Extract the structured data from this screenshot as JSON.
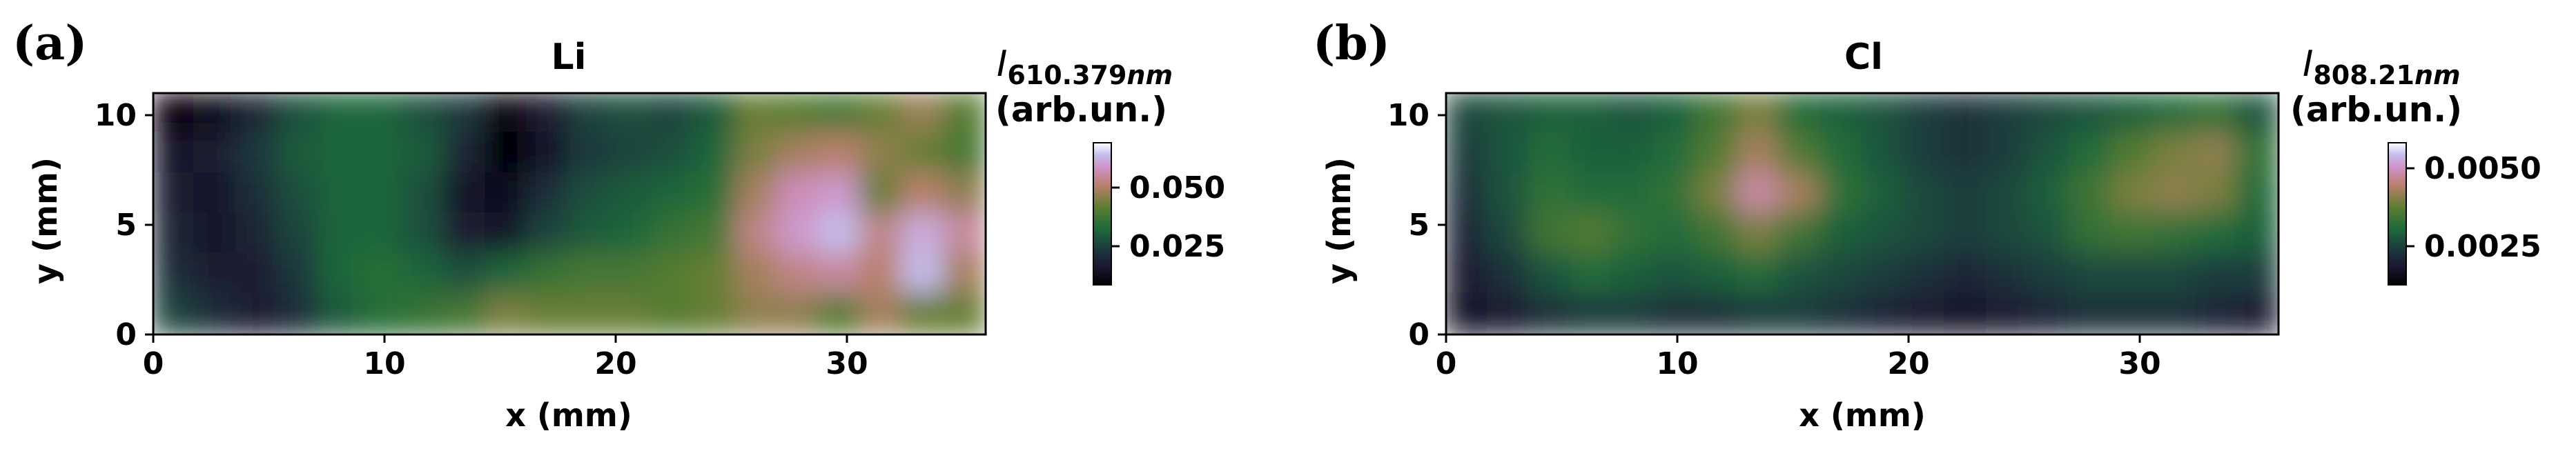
{
  "figure": {
    "panels": [
      {
        "letter": "(a)",
        "title": "Li",
        "xlabel": "x (mm)",
        "ylabel": "y (mm)",
        "xticks": [
          "0",
          "10",
          "20",
          "30"
        ],
        "yticks": [
          "0",
          "5",
          "10"
        ],
        "colorbar": {
          "symbol": "I",
          "subscript_bold": "610.379",
          "subscript_italic": "nm",
          "unit": "(arb.un.)",
          "ticks": [
            "0.025",
            "0.050"
          ]
        }
      },
      {
        "letter": "(b)",
        "title": "Cl",
        "xlabel": "x (mm)",
        "ylabel": "y (mm)",
        "xticks": [
          "0",
          "10",
          "20",
          "30"
        ],
        "yticks": [
          "0",
          "5",
          "10"
        ],
        "colorbar": {
          "symbol": "I",
          "subscript_bold": "808.21",
          "subscript_italic": "nm",
          "unit": "(arb.un.)",
          "ticks": [
            "0.0025",
            "0.0050"
          ]
        }
      }
    ]
  },
  "chart_data": [
    {
      "type": "heatmap",
      "title": "Li",
      "xlabel": "x (mm)",
      "ylabel": "y (mm)",
      "xlim": [
        0,
        36
      ],
      "ylim": [
        0,
        11
      ],
      "colormap": "cubehelix",
      "colorbar_ticks": [
        0.025,
        0.05
      ],
      "color_range": [
        0.008,
        0.065
      ],
      "values": [
        [
          0.01,
          0.012,
          0.018,
          0.026,
          0.03,
          0.03,
          0.026,
          0.022,
          0.01,
          0.016,
          0.024,
          0.026,
          0.024,
          0.028,
          0.04,
          0.038,
          0.036,
          0.04,
          0.045,
          0.038
        ],
        [
          0.014,
          0.016,
          0.022,
          0.028,
          0.03,
          0.03,
          0.028,
          0.018,
          0.008,
          0.014,
          0.022,
          0.024,
          0.026,
          0.03,
          0.042,
          0.046,
          0.048,
          0.044,
          0.04,
          0.036
        ],
        [
          0.016,
          0.014,
          0.02,
          0.026,
          0.03,
          0.03,
          0.026,
          0.014,
          0.012,
          0.02,
          0.026,
          0.028,
          0.03,
          0.032,
          0.046,
          0.054,
          0.056,
          0.04,
          0.048,
          0.044
        ],
        [
          0.018,
          0.014,
          0.018,
          0.024,
          0.03,
          0.03,
          0.026,
          0.016,
          0.014,
          0.024,
          0.028,
          0.03,
          0.034,
          0.036,
          0.05,
          0.056,
          0.06,
          0.05,
          0.058,
          0.052
        ],
        [
          0.02,
          0.016,
          0.016,
          0.022,
          0.03,
          0.032,
          0.03,
          0.026,
          0.03,
          0.034,
          0.036,
          0.036,
          0.038,
          0.04,
          0.046,
          0.05,
          0.052,
          0.048,
          0.06,
          0.046
        ],
        [
          0.024,
          0.02,
          0.016,
          0.02,
          0.028,
          0.032,
          0.034,
          0.036,
          0.042,
          0.04,
          0.04,
          0.04,
          0.038,
          0.04,
          0.044,
          0.044,
          0.038,
          0.046,
          0.04,
          0.04
        ]
      ]
    },
    {
      "type": "heatmap",
      "title": "Cl",
      "xlabel": "x (mm)",
      "ylabel": "y (mm)",
      "xlim": [
        0,
        36
      ],
      "ylim": [
        0,
        11
      ],
      "colormap": "cubehelix",
      "colorbar_ticks": [
        0.0025,
        0.005
      ],
      "color_range": [
        0.0008,
        0.0062
      ],
      "values": [
        [
          0.0024,
          0.0026,
          0.0028,
          0.0028,
          0.0026,
          0.0028,
          0.0034,
          0.004,
          0.003,
          0.0028,
          0.0026,
          0.0022,
          0.002,
          0.0022,
          0.0024,
          0.0026,
          0.0028,
          0.003,
          0.0032,
          0.0026
        ],
        [
          0.0022,
          0.0026,
          0.003,
          0.0028,
          0.0028,
          0.003,
          0.0036,
          0.0044,
          0.0036,
          0.003,
          0.0026,
          0.0022,
          0.002,
          0.0022,
          0.0026,
          0.003,
          0.0036,
          0.004,
          0.0042,
          0.0032
        ],
        [
          0.002,
          0.0026,
          0.0032,
          0.003,
          0.003,
          0.0032,
          0.004,
          0.005,
          0.0044,
          0.0032,
          0.0028,
          0.0024,
          0.0022,
          0.0024,
          0.0028,
          0.0034,
          0.004,
          0.0042,
          0.004,
          0.003
        ],
        [
          0.0018,
          0.0024,
          0.0034,
          0.0036,
          0.0032,
          0.003,
          0.0034,
          0.004,
          0.0034,
          0.0028,
          0.0026,
          0.0024,
          0.0022,
          0.0024,
          0.0026,
          0.0032,
          0.0034,
          0.0032,
          0.003,
          0.0028
        ],
        [
          0.0016,
          0.002,
          0.0026,
          0.003,
          0.0028,
          0.0026,
          0.0028,
          0.003,
          0.0026,
          0.0024,
          0.0022,
          0.002,
          0.0018,
          0.002,
          0.0022,
          0.0024,
          0.0024,
          0.0024,
          0.0022,
          0.0022
        ],
        [
          0.0014,
          0.0016,
          0.002,
          0.0022,
          0.0022,
          0.002,
          0.002,
          0.0022,
          0.0022,
          0.002,
          0.0018,
          0.0016,
          0.0014,
          0.0016,
          0.0018,
          0.002,
          0.002,
          0.002,
          0.0018,
          0.0016
        ]
      ]
    }
  ]
}
